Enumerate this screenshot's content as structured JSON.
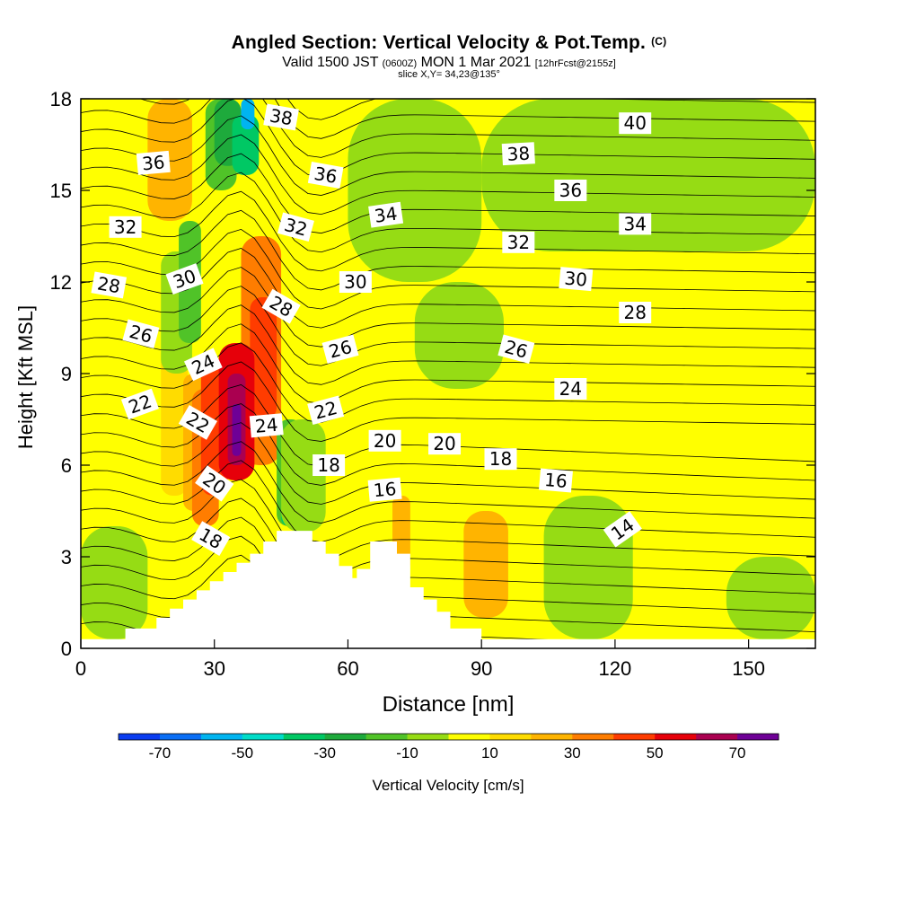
{
  "header": {
    "title": "Angled Section: Vertical Velocity & Pot.Temp.",
    "title_tag": "(C)",
    "valid_prefix": "Valid 1500 JST",
    "valid_zulu": "(0600Z)",
    "valid_date": "MON 1 Mar 2021",
    "forecast": "[12hrFcst@2155z]",
    "slice": "slice X,Y= 34,23@135°"
  },
  "chart_data": {
    "type": "heatmap",
    "xlabel": "Distance [nm]",
    "ylabel": "Height [Kft MSL]",
    "xlim": [
      0,
      165
    ],
    "ylim": [
      0,
      18
    ],
    "xticks": [
      0,
      30,
      60,
      90,
      120,
      150
    ],
    "yticks": [
      0,
      3,
      6,
      9,
      12,
      15,
      18
    ],
    "colorbar": {
      "label": "Vertical Velocity [cm/s]",
      "ticks": [
        "-70",
        "-50",
        "-30",
        "-10",
        "10",
        "30",
        "50",
        "70"
      ],
      "bounds": [
        -80,
        -70,
        -60,
        -50,
        -40,
        -30,
        -20,
        -10,
        0,
        10,
        20,
        30,
        40,
        50,
        60,
        70,
        80
      ],
      "colors": [
        "#0a3cf0",
        "#0a6ef5",
        "#00b4f0",
        "#00dcc8",
        "#00c864",
        "#1eaa3c",
        "#50c328",
        "#96dc14",
        "#ffff00",
        "#ffdc00",
        "#ffb400",
        "#ff7d00",
        "#ff3c00",
        "#e6000a",
        "#aa0050",
        "#6e0096"
      ]
    },
    "terrain_profile": [
      [
        0,
        0.3
      ],
      [
        10,
        0.3
      ],
      [
        10,
        0.65
      ],
      [
        17,
        0.65
      ],
      [
        17,
        1.0
      ],
      [
        20,
        1.0
      ],
      [
        20,
        1.3
      ],
      [
        23,
        1.3
      ],
      [
        23,
        1.6
      ],
      [
        26,
        1.6
      ],
      [
        26,
        1.9
      ],
      [
        29,
        1.9
      ],
      [
        29,
        2.2
      ],
      [
        32,
        2.2
      ],
      [
        32,
        2.5
      ],
      [
        35,
        2.5
      ],
      [
        35,
        2.8
      ],
      [
        38,
        2.8
      ],
      [
        38,
        3.1
      ],
      [
        41,
        3.1
      ],
      [
        41,
        3.5
      ],
      [
        44,
        3.5
      ],
      [
        44,
        3.85
      ],
      [
        52,
        3.85
      ],
      [
        52,
        3.5
      ],
      [
        55,
        3.5
      ],
      [
        55,
        3.1
      ],
      [
        58,
        3.1
      ],
      [
        58,
        2.7
      ],
      [
        61,
        2.7
      ],
      [
        61,
        2.3
      ],
      [
        62,
        2.3
      ],
      [
        62,
        2.6
      ],
      [
        65,
        2.6
      ],
      [
        65,
        3.5
      ],
      [
        71,
        3.5
      ],
      [
        71,
        3.1
      ],
      [
        74,
        3.1
      ],
      [
        74,
        2.0
      ],
      [
        77,
        2.0
      ],
      [
        77,
        1.6
      ],
      [
        80,
        1.6
      ],
      [
        80,
        1.2
      ],
      [
        83,
        1.2
      ],
      [
        83,
        0.65
      ],
      [
        90,
        0.65
      ],
      [
        90,
        0.3
      ],
      [
        165,
        0.3
      ]
    ],
    "velocity_cells": [
      {
        "x": [
          15,
          25
        ],
        "y": [
          14,
          18
        ],
        "v": 20
      },
      {
        "x": [
          18,
          24
        ],
        "y": [
          5,
          10
        ],
        "v": 10
      },
      {
        "x": [
          23,
          28
        ],
        "y": [
          4.5,
          9
        ],
        "v": 20
      },
      {
        "x": [
          25,
          31
        ],
        "y": [
          4,
          8.5
        ],
        "v": 30
      },
      {
        "x": [
          27,
          33
        ],
        "y": [
          5,
          9.5
        ],
        "v": 40
      },
      {
        "x": [
          36,
          45
        ],
        "y": [
          6,
          13.5
        ],
        "v": 30
      },
      {
        "x": [
          38,
          44
        ],
        "y": [
          7.5,
          11.5
        ],
        "v": 40
      },
      {
        "x": [
          31,
          39
        ],
        "y": [
          5.5,
          10
        ],
        "v": 50
      },
      {
        "x": [
          33,
          37
        ],
        "y": [
          6,
          9
        ],
        "v": 60
      },
      {
        "x": [
          34,
          36
        ],
        "y": [
          6.3,
          8
        ],
        "v": 70
      },
      {
        "x": [
          28,
          35
        ],
        "y": [
          15,
          18
        ],
        "v": -20
      },
      {
        "x": [
          30,
          36
        ],
        "y": [
          15.8,
          18
        ],
        "v": -30
      },
      {
        "x": [
          34,
          40
        ],
        "y": [
          15.5,
          17.5
        ],
        "v": -40
      },
      {
        "x": [
          36,
          39
        ],
        "y": [
          17,
          18
        ],
        "v": -60
      },
      {
        "x": [
          44,
          50
        ],
        "y": [
          4,
          7.5
        ],
        "v": -20
      },
      {
        "x": [
          45,
          49
        ],
        "y": [
          4,
          6.5
        ],
        "v": -40
      },
      {
        "x": [
          46,
          48
        ],
        "y": [
          4.5,
          5.5
        ],
        "v": -60
      },
      {
        "x": [
          45,
          55
        ],
        "y": [
          3.8,
          7.5
        ],
        "v": -10
      },
      {
        "x": [
          60,
          90
        ],
        "y": [
          12,
          18
        ],
        "v": -10
      },
      {
        "x": [
          90,
          165
        ],
        "y": [
          13,
          18
        ],
        "v": -10
      },
      {
        "x": [
          75,
          95
        ],
        "y": [
          8.5,
          12
        ],
        "v": -10
      },
      {
        "x": [
          104,
          124
        ],
        "y": [
          0.3,
          5
        ],
        "v": -10
      },
      {
        "x": [
          145,
          165
        ],
        "y": [
          0.3,
          3
        ],
        "v": -10
      },
      {
        "x": [
          0,
          15
        ],
        "y": [
          0.3,
          4
        ],
        "v": -10
      },
      {
        "x": [
          18,
          25
        ],
        "y": [
          9,
          13
        ],
        "v": -10
      },
      {
        "x": [
          22,
          27
        ],
        "y": [
          10,
          14
        ],
        "v": -20
      },
      {
        "x": [
          86,
          96
        ],
        "y": [
          1,
          4.5
        ],
        "v": 20
      },
      {
        "x": [
          70,
          74
        ],
        "y": [
          2.5,
          5
        ],
        "v": 20
      }
    ],
    "theta_labels": [
      {
        "text": "38",
        "x": 45,
        "y": 17.4,
        "rot": 10
      },
      {
        "text": "36",
        "x": 16.3,
        "y": 15.9,
        "rot": -5
      },
      {
        "text": "36",
        "x": 55,
        "y": 15.5,
        "rot": 10
      },
      {
        "text": "32",
        "x": 10,
        "y": 13.8,
        "rot": 0
      },
      {
        "text": "32",
        "x": 48.3,
        "y": 13.8,
        "rot": 15
      },
      {
        "text": "34",
        "x": 68.5,
        "y": 14.2,
        "rot": -8
      },
      {
        "text": "38",
        "x": 98.3,
        "y": 16.2,
        "rot": -3
      },
      {
        "text": "40",
        "x": 124.5,
        "y": 17.2,
        "rot": 0
      },
      {
        "text": "36",
        "x": 110,
        "y": 15.0,
        "rot": 0
      },
      {
        "text": "34",
        "x": 124.5,
        "y": 13.9,
        "rot": 0
      },
      {
        "text": "32",
        "x": 98.3,
        "y": 13.3,
        "rot": 0
      },
      {
        "text": "30",
        "x": 23.3,
        "y": 12.1,
        "rot": -20
      },
      {
        "text": "28",
        "x": 6.3,
        "y": 11.9,
        "rot": 10
      },
      {
        "text": "30",
        "x": 61.7,
        "y": 12.0,
        "rot": 0
      },
      {
        "text": "30",
        "x": 111.2,
        "y": 12.1,
        "rot": 5
      },
      {
        "text": "28",
        "x": 45,
        "y": 11.2,
        "rot": 30
      },
      {
        "text": "28",
        "x": 124.5,
        "y": 11.0,
        "rot": 0
      },
      {
        "text": "26",
        "x": 13.5,
        "y": 10.3,
        "rot": 15
      },
      {
        "text": "26",
        "x": 58.3,
        "y": 9.8,
        "rot": -15
      },
      {
        "text": "26",
        "x": 97.8,
        "y": 9.8,
        "rot": 15
      },
      {
        "text": "24",
        "x": 27.5,
        "y": 9.3,
        "rot": -25
      },
      {
        "text": "24",
        "x": 110,
        "y": 8.5,
        "rot": 0
      },
      {
        "text": "22",
        "x": 13.3,
        "y": 8.0,
        "rot": -20
      },
      {
        "text": "22",
        "x": 55,
        "y": 7.8,
        "rot": -15
      },
      {
        "text": "22",
        "x": 26.3,
        "y": 7.4,
        "rot": 30
      },
      {
        "text": "24",
        "x": 41.7,
        "y": 7.3,
        "rot": -5
      },
      {
        "text": "20",
        "x": 68.3,
        "y": 6.8,
        "rot": 0
      },
      {
        "text": "20",
        "x": 81.7,
        "y": 6.7,
        "rot": 0
      },
      {
        "text": "18",
        "x": 55.7,
        "y": 6.0,
        "rot": 0
      },
      {
        "text": "18",
        "x": 94.3,
        "y": 6.2,
        "rot": 0
      },
      {
        "text": "20",
        "x": 30,
        "y": 5.4,
        "rot": 35
      },
      {
        "text": "16",
        "x": 68.3,
        "y": 5.2,
        "rot": -5
      },
      {
        "text": "16",
        "x": 106.7,
        "y": 5.5,
        "rot": 5
      },
      {
        "text": "18",
        "x": 29.2,
        "y": 3.6,
        "rot": 30
      },
      {
        "text": "14",
        "x": 121.7,
        "y": 3.9,
        "rot": -35
      }
    ]
  }
}
